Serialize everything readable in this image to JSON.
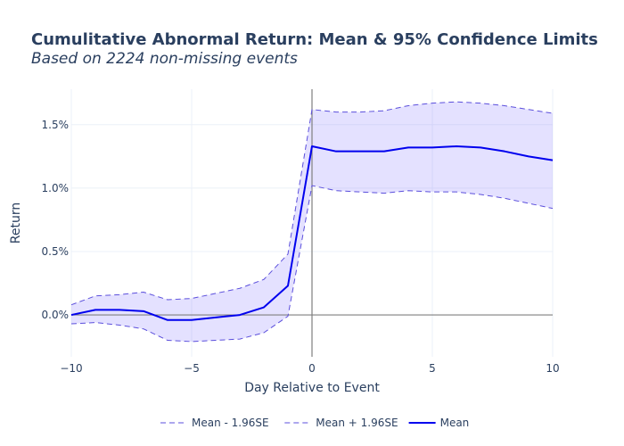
{
  "chart_data": {
    "type": "line",
    "title": "Cumulitative Abnormal Return: Mean & 95% Confidence Limits",
    "subtitle": "Based on 2224 non-missing events",
    "xlabel": "Day Relative to Event",
    "ylabel": "Return",
    "xlim": [
      -10,
      10
    ],
    "ylim": [
      -0.0033,
      0.0178
    ],
    "x_ticks": [
      {
        "value": -10,
        "label": "−10"
      },
      {
        "value": -5,
        "label": "−5"
      },
      {
        "value": 0,
        "label": "0"
      },
      {
        "value": 5,
        "label": "5"
      },
      {
        "value": 10,
        "label": "10"
      }
    ],
    "y_ticks": [
      {
        "value": 0.0,
        "label": "0.0%"
      },
      {
        "value": 0.005,
        "label": "0.5%"
      },
      {
        "value": 0.01,
        "label": "1.0%"
      },
      {
        "value": 0.015,
        "label": "1.5%"
      }
    ],
    "grid": true,
    "legend_position": "bottom",
    "x": [
      -10,
      -9,
      -8,
      -7,
      -6,
      -5,
      -4,
      -3,
      -2,
      -1,
      0,
      1,
      2,
      3,
      4,
      5,
      6,
      7,
      8,
      9,
      10
    ],
    "series": [
      {
        "name": "Mean - 1.96SE",
        "style": "dash",
        "color": "#5b4fdc",
        "values": [
          -0.0007,
          -0.0006,
          -0.0008,
          -0.0011,
          -0.002,
          -0.0021,
          -0.002,
          -0.0019,
          -0.0014,
          -0.0001,
          0.0102,
          0.0098,
          0.0097,
          0.0096,
          0.0098,
          0.0097,
          0.0097,
          0.0095,
          0.0092,
          0.0088,
          0.0084
        ]
      },
      {
        "name": "Mean + 1.96SE",
        "style": "dash",
        "color": "#5b4fdc",
        "values": [
          0.0008,
          0.0015,
          0.0016,
          0.0018,
          0.0012,
          0.0013,
          0.0017,
          0.0021,
          0.0028,
          0.0048,
          0.0162,
          0.016,
          0.016,
          0.0161,
          0.0165,
          0.0167,
          0.0168,
          0.0167,
          0.0165,
          0.0162,
          0.0159
        ]
      },
      {
        "name": "Mean",
        "style": "solid",
        "color": "#0000ee",
        "values": [
          0.0,
          0.0004,
          0.0004,
          0.0003,
          -0.0004,
          -0.0004,
          -0.0002,
          0.0,
          0.0006,
          0.0023,
          0.0133,
          0.0129,
          0.0129,
          0.0129,
          0.0132,
          0.0132,
          0.0133,
          0.0132,
          0.0129,
          0.0125,
          0.0122
        ]
      }
    ],
    "fill_color": "rgba(130,120,255,0.22)"
  }
}
